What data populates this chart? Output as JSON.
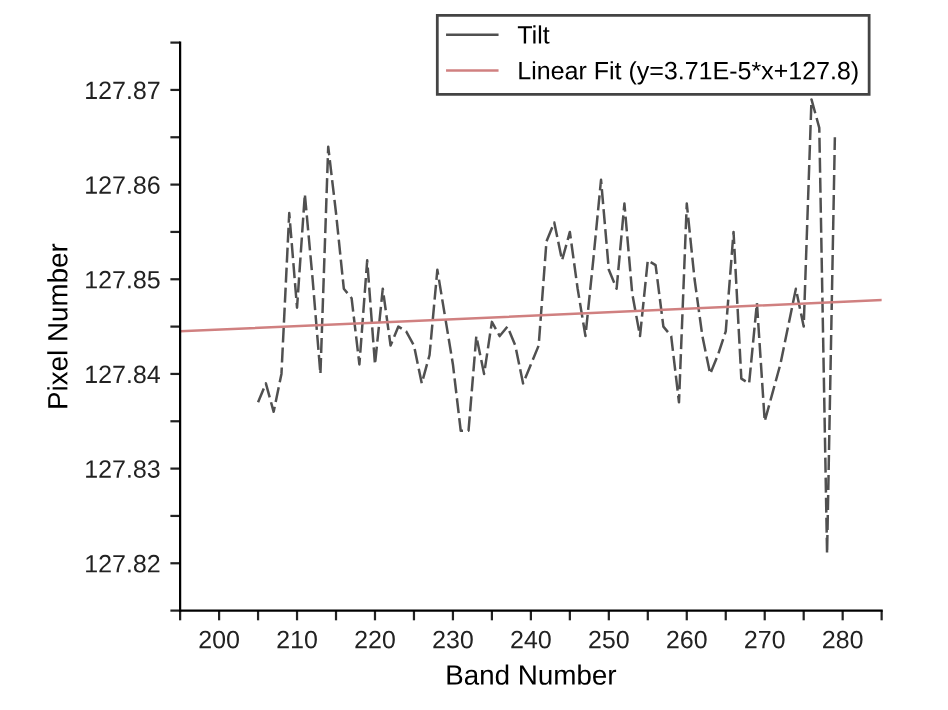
{
  "chart_data": {
    "type": "line",
    "xlabel": "Band Number",
    "ylabel": "Pixel Number",
    "xlim": [
      195,
      285
    ],
    "ylim": [
      127.815,
      127.875
    ],
    "xticks": [
      {
        "value": 195,
        "label": null
      },
      200,
      {
        "value": 205,
        "label": null
      },
      210,
      {
        "value": 215,
        "label": null
      },
      220,
      {
        "value": 225,
        "label": null
      },
      230,
      {
        "value": 235,
        "label": null
      },
      240,
      {
        "value": 245,
        "label": null
      },
      250,
      {
        "value": 255,
        "label": null
      },
      260,
      {
        "value": 265,
        "label": null
      },
      270,
      {
        "value": 275,
        "label": null
      },
      280,
      {
        "value": 285,
        "label": null
      }
    ],
    "yticks": [
      {
        "value": 127.815,
        "label": null
      },
      127.82,
      {
        "value": 127.825,
        "label": null
      },
      127.83,
      {
        "value": 127.835,
        "label": null
      },
      127.84,
      {
        "value": 127.845,
        "label": null
      },
      127.85,
      {
        "value": 127.855,
        "label": null
      },
      127.86,
      {
        "value": 127.865,
        "label": null
      },
      127.87,
      {
        "value": 127.875,
        "label": null
      }
    ],
    "grid": false,
    "legend": "top right",
    "marker": "none",
    "series": [
      {
        "name": "Tilt",
        "color": "#505050",
        "line_style": "dashed",
        "x": [
          205,
          206,
          207,
          208,
          209,
          210,
          211,
          212,
          213,
          214,
          215,
          216,
          217,
          218,
          219,
          220,
          221,
          222,
          223,
          224,
          225,
          226,
          227,
          228,
          229,
          230,
          231,
          232,
          233,
          234,
          235,
          236,
          237,
          238,
          239,
          240,
          241,
          242,
          243,
          244,
          245,
          246,
          247,
          248,
          249,
          250,
          251,
          252,
          253,
          254,
          255,
          256,
          257,
          258,
          259,
          260,
          261,
          262,
          263,
          264,
          265,
          266,
          267,
          268,
          269,
          270,
          271,
          272,
          273,
          274,
          275,
          276,
          277,
          278,
          279
        ],
        "values": [
          127.837,
          127.839,
          127.836,
          127.84,
          127.857,
          127.847,
          127.859,
          127.85,
          127.84,
          127.864,
          127.857,
          127.849,
          127.848,
          127.841,
          127.852,
          127.841,
          127.849,
          127.843,
          127.845,
          127.8445,
          127.843,
          127.839,
          127.842,
          127.851,
          127.846,
          127.841,
          127.834,
          127.834,
          127.844,
          127.84,
          127.8455,
          127.844,
          127.845,
          127.843,
          127.839,
          127.841,
          127.843,
          127.854,
          127.856,
          127.852,
          127.855,
          127.849,
          127.844,
          127.852,
          127.8605,
          127.851,
          127.849,
          127.858,
          127.8485,
          127.844,
          127.852,
          127.8515,
          127.845,
          127.844,
          127.837,
          127.858,
          127.85,
          127.844,
          127.84,
          127.842,
          127.8445,
          127.855,
          127.8395,
          127.839,
          127.8475,
          127.835,
          127.838,
          127.841,
          127.845,
          127.849,
          127.845,
          127.869,
          127.866,
          127.821,
          127.865
        ]
      },
      {
        "name": "Linear Fit (y=3.71E-5*x+127.8)",
        "color": "#d08080",
        "line_style": "solid",
        "x": [
          195,
          285
        ],
        "values": [
          127.8445,
          127.8478
        ]
      }
    ]
  }
}
